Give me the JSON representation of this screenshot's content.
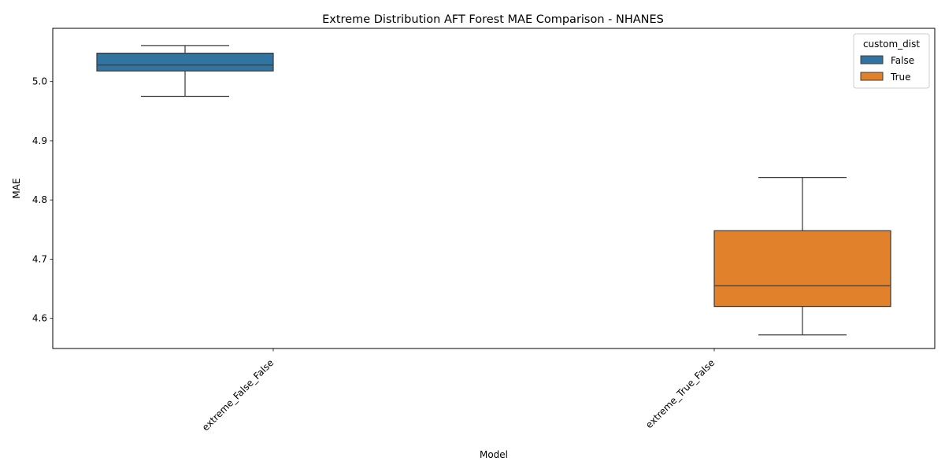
{
  "chart_data": {
    "type": "box",
    "title": "Extreme Distribution AFT Forest MAE Comparison - NHANES",
    "xlabel": "Model",
    "ylabel": "MAE",
    "ylim": [
      4.549,
      5.09
    ],
    "yticks": [
      4.6,
      4.7,
      4.8,
      4.9,
      5.0
    ],
    "ytick_labels": [
      "4.6",
      "4.7",
      "4.8",
      "4.9",
      "5.0"
    ],
    "categories": [
      "extreme_False_False",
      "extreme_True_False"
    ],
    "grid": false,
    "legend": {
      "title": "custom_dist",
      "placement": "top-right",
      "entries": [
        {
          "label": "False",
          "color": "#3274a1"
        },
        {
          "label": "True",
          "color": "#e1812c"
        }
      ]
    },
    "series": [
      {
        "name": "False",
        "color": "#3274a1",
        "boxes": [
          {
            "category": "extreme_False_False",
            "whislo": 4.975,
            "q1": 5.018,
            "med": 5.028,
            "q3": 5.048,
            "whishi": 5.061
          }
        ]
      },
      {
        "name": "True",
        "color": "#e1812c",
        "boxes": [
          {
            "category": "extreme_True_False",
            "whislo": 4.572,
            "q1": 4.62,
            "med": 4.655,
            "q3": 4.748,
            "whishi": 4.838
          }
        ]
      }
    ]
  }
}
